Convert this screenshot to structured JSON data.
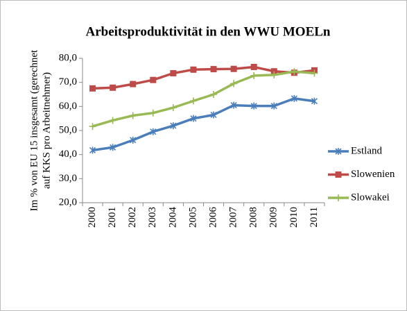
{
  "chart_data": {
    "type": "line",
    "title": "Arbeitsproduktivität in den WWU MOELn",
    "y_label": [
      "Im % von EU 15 insgesamt (gerechnet",
      "auf KKS pro Arbeitnehmer)"
    ],
    "categories": [
      "2000",
      "2001",
      "2002",
      "2003",
      "2004",
      "2005",
      "2006",
      "2007",
      "2008",
      "2009",
      "2010",
      "2011"
    ],
    "series": [
      {
        "name": "Estland",
        "color": "#4a7ebb",
        "marker": "star",
        "values": [
          41.8,
          43.0,
          46.0,
          49.5,
          52.0,
          55.0,
          56.5,
          60.5,
          60.2,
          60.2,
          63.3,
          62.2
        ]
      },
      {
        "name": "Slowenien",
        "color": "#be4b48",
        "marker": "square",
        "values": [
          67.5,
          67.8,
          69.3,
          71.0,
          73.8,
          75.3,
          75.5,
          75.6,
          76.4,
          74.6,
          74.0,
          75.0
        ]
      },
      {
        "name": "Slowakei",
        "color": "#98b954",
        "marker": "plus",
        "values": [
          51.7,
          54.2,
          56.2,
          57.3,
          59.5,
          62.3,
          65.0,
          69.5,
          72.8,
          73.1,
          74.5,
          73.8
        ]
      }
    ],
    "ylim": [
      20,
      80
    ],
    "yticks": [
      {
        "value": 20,
        "label": "20,0"
      },
      {
        "value": 30,
        "label": "30,0"
      },
      {
        "value": 40,
        "label": "40,0"
      },
      {
        "value": 50,
        "label": "50,0"
      },
      {
        "value": 60,
        "label": "60,0"
      },
      {
        "value": 70,
        "label": "70,0"
      },
      {
        "value": 80,
        "label": "80,0"
      }
    ],
    "grid": false,
    "legend": "right"
  }
}
